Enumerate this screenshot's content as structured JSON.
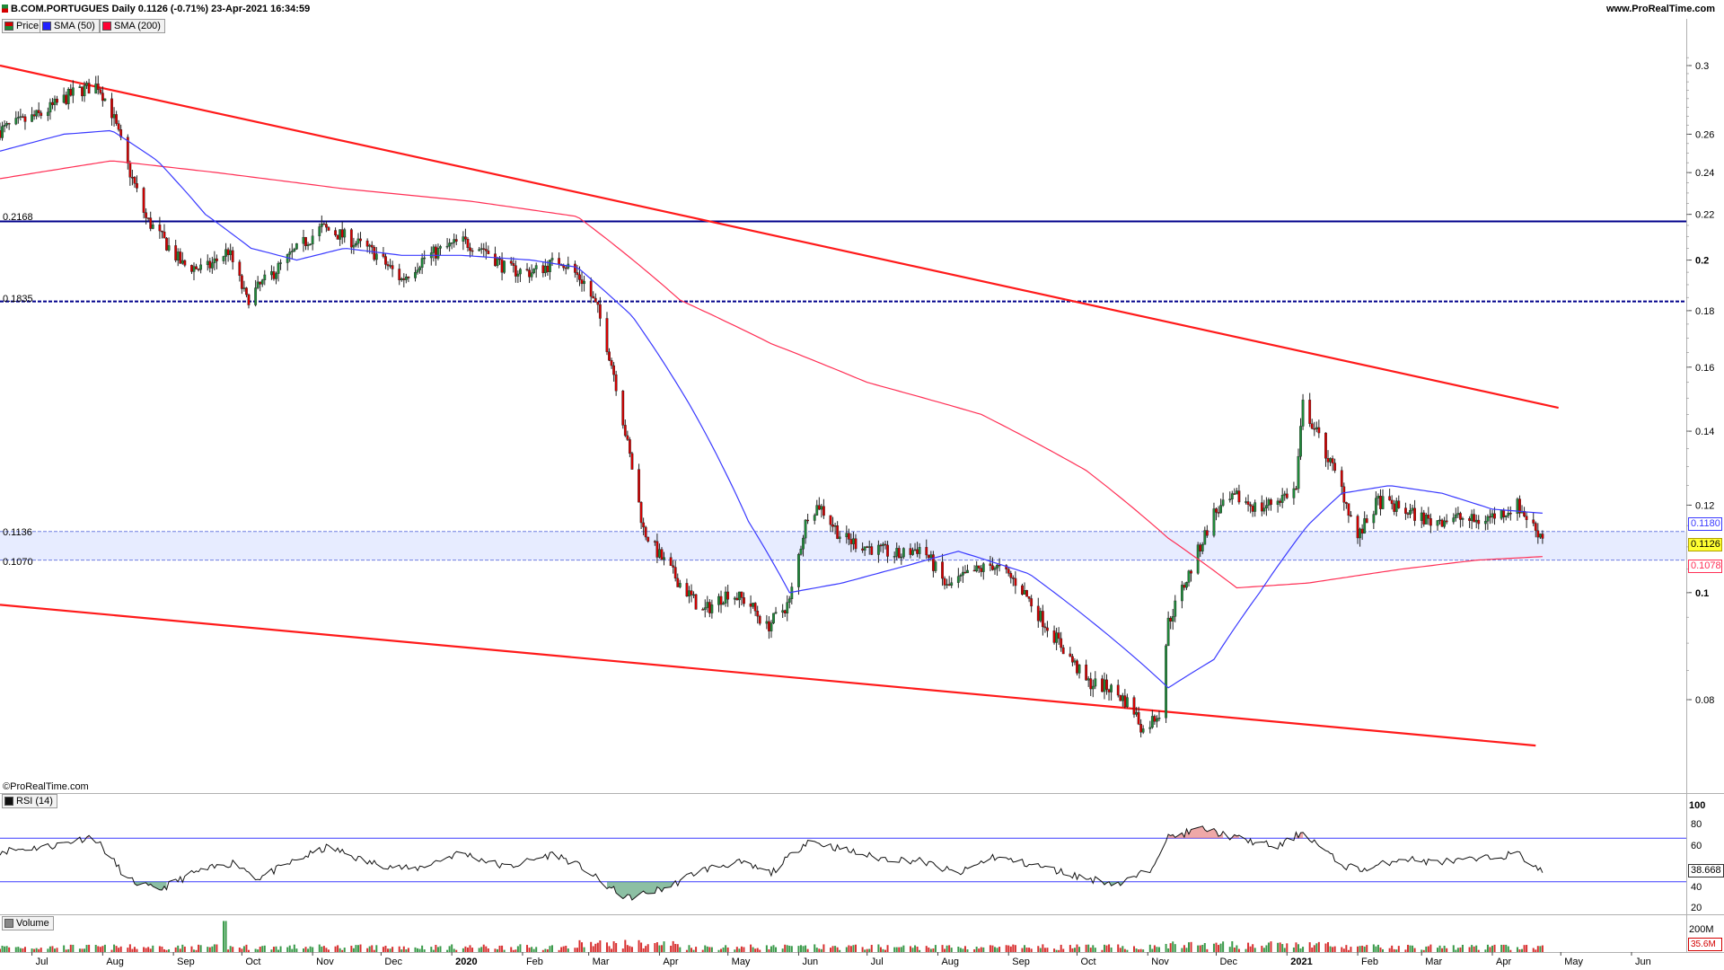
{
  "header": {
    "title": "B.COM.PORTUGUES Daily 0.1126 (-0.71%) 23-Apr-2021 16:34:59",
    "site": "www.ProRealTime.com",
    "watermark": "©ProRealTime.com"
  },
  "legend": [
    {
      "label": "Price",
      "color": "#00a000"
    },
    {
      "label": "SMA (50)",
      "color": "#2020ff"
    },
    {
      "label": "SMA (200)",
      "color": "#ff0033"
    }
  ],
  "price_axis_ticks": [
    "0.3",
    "0.26",
    "0.24",
    "0.22",
    "0.2",
    "0.18",
    "0.16",
    "0.14",
    "0.12",
    "0.1",
    "0.08"
  ],
  "price_tags": {
    "sma50": "0.1180",
    "last": "0.1126",
    "sma200": "0.1078"
  },
  "level_labels": [
    "0.2168",
    "0.1835",
    "0.1136",
    "0.1070"
  ],
  "rsi": {
    "label": "RSI (14)",
    "ticks": [
      "100",
      "80",
      "60",
      "40",
      "20"
    ],
    "value": "38.668"
  },
  "volume": {
    "label": "Volume",
    "ticks": [
      "200M"
    ],
    "value": "35.6M"
  },
  "months": [
    "Jul",
    "Aug",
    "Sep",
    "Oct",
    "Nov",
    "Dec",
    "2020",
    "Feb",
    "Mar",
    "Apr",
    "May",
    "Jun",
    "Jul",
    "Aug",
    "Sep",
    "Oct",
    "Nov",
    "Dec",
    "2021",
    "Feb",
    "Mar",
    "Apr",
    "May",
    "Jun"
  ],
  "colors": {
    "up": "#1f8a3a",
    "down": "#d40000",
    "sma50": "#3a3aff",
    "sma200": "#ff2f55",
    "trend": "#ff1a1a",
    "level": "#00008b"
  },
  "chart_data": {
    "type": "candlestick",
    "title": "B.COM.PORTUGUES Daily",
    "y_scale": "log",
    "ylim": [
      0.07,
      0.32
    ],
    "x_range": [
      "2019-06-17",
      "2021-06-25"
    ],
    "last_price": 0.1126,
    "change_pct": -0.71,
    "horizontal_levels": [
      0.2168,
      0.1835,
      0.1136,
      0.107
    ],
    "shaded_band": [
      0.107,
      0.1136
    ],
    "trend_lines": [
      {
        "from": [
          "2019-06-17",
          0.3
        ],
        "to": [
          "2021-04-30",
          0.147
        ]
      },
      {
        "from": [
          "2019-06-17",
          0.0975
        ],
        "to": [
          "2021-04-20",
          0.0727
        ]
      }
    ],
    "price_path": [
      [
        "2019-06-17",
        0.262
      ],
      [
        "2019-07-05",
        0.271
      ],
      [
        "2019-07-20",
        0.284
      ],
      [
        "2019-07-30",
        0.288
      ],
      [
        "2019-08-05",
        0.272
      ],
      [
        "2019-08-12",
        0.243
      ],
      [
        "2019-08-20",
        0.218
      ],
      [
        "2019-08-28",
        0.208
      ],
      [
        "2019-09-05",
        0.198
      ],
      [
        "2019-09-15",
        0.196
      ],
      [
        "2019-09-25",
        0.204
      ],
      [
        "2019-10-03",
        0.184
      ],
      [
        "2019-10-15",
        0.195
      ],
      [
        "2019-10-28",
        0.207
      ],
      [
        "2019-11-05",
        0.214
      ],
      [
        "2019-11-15",
        0.21
      ],
      [
        "2019-11-28",
        0.203
      ],
      [
        "2019-12-10",
        0.192
      ],
      [
        "2019-12-20",
        0.201
      ],
      [
        "2020-01-05",
        0.208
      ],
      [
        "2020-01-15",
        0.205
      ],
      [
        "2020-01-25",
        0.196
      ],
      [
        "2020-02-05",
        0.195
      ],
      [
        "2020-02-18",
        0.2
      ],
      [
        "2020-02-28",
        0.191
      ],
      [
        "2020-03-05",
        0.18
      ],
      [
        "2020-03-12",
        0.158
      ],
      [
        "2020-03-18",
        0.136
      ],
      [
        "2020-03-25",
        0.114
      ],
      [
        "2020-04-01",
        0.108
      ],
      [
        "2020-04-10",
        0.102
      ],
      [
        "2020-04-20",
        0.096
      ],
      [
        "2020-05-01",
        0.1
      ],
      [
        "2020-05-10",
        0.098
      ],
      [
        "2020-05-18",
        0.093
      ],
      [
        "2020-05-28",
        0.098
      ],
      [
        "2020-06-05",
        0.118
      ],
      [
        "2020-06-10",
        0.12
      ],
      [
        "2020-06-20",
        0.112
      ],
      [
        "2020-07-01",
        0.11
      ],
      [
        "2020-07-15",
        0.108
      ],
      [
        "2020-07-25",
        0.11
      ],
      [
        "2020-08-05",
        0.101
      ],
      [
        "2020-08-15",
        0.104
      ],
      [
        "2020-08-25",
        0.106
      ],
      [
        "2020-09-05",
        0.102
      ],
      [
        "2020-09-15",
        0.095
      ],
      [
        "2020-09-25",
        0.089
      ],
      [
        "2020-10-05",
        0.083
      ],
      [
        "2020-10-15",
        0.082
      ],
      [
        "2020-10-25",
        0.079
      ],
      [
        "2020-10-30",
        0.075
      ],
      [
        "2020-11-06",
        0.078
      ],
      [
        "2020-11-10",
        0.094
      ],
      [
        "2020-11-20",
        0.105
      ],
      [
        "2020-11-30",
        0.118
      ],
      [
        "2020-12-10",
        0.122
      ],
      [
        "2020-12-20",
        0.119
      ],
      [
        "2021-01-05",
        0.124
      ],
      [
        "2021-01-08",
        0.148
      ],
      [
        "2021-01-15",
        0.138
      ],
      [
        "2021-01-25",
        0.124
      ],
      [
        "2021-02-01",
        0.112
      ],
      [
        "2021-02-10",
        0.121
      ],
      [
        "2021-02-20",
        0.119
      ],
      [
        "2021-03-05",
        0.116
      ],
      [
        "2021-03-15",
        0.117
      ],
      [
        "2021-03-25",
        0.116
      ],
      [
        "2021-04-05",
        0.118
      ],
      [
        "2021-04-12",
        0.12
      ],
      [
        "2021-04-20",
        0.114
      ],
      [
        "2021-04-23",
        0.1126
      ]
    ],
    "sma50_path": [
      [
        "2019-06-17",
        0.251
      ],
      [
        "2019-07-15",
        0.26
      ],
      [
        "2019-08-05",
        0.262
      ],
      [
        "2019-08-25",
        0.246
      ],
      [
        "2019-09-15",
        0.22
      ],
      [
        "2019-10-05",
        0.205
      ],
      [
        "2019-10-25",
        0.2
      ],
      [
        "2019-11-15",
        0.205
      ],
      [
        "2019-12-10",
        0.202
      ],
      [
        "2020-01-05",
        0.202
      ],
      [
        "2020-02-05",
        0.2
      ],
      [
        "2020-02-25",
        0.197
      ],
      [
        "2020-03-20",
        0.178
      ],
      [
        "2020-04-15",
        0.147
      ],
      [
        "2020-05-10",
        0.116
      ],
      [
        "2020-05-28",
        0.1
      ],
      [
        "2020-06-20",
        0.102
      ],
      [
        "2020-07-20",
        0.106
      ],
      [
        "2020-08-10",
        0.109
      ],
      [
        "2020-09-10",
        0.104
      ],
      [
        "2020-10-05",
        0.095
      ],
      [
        "2020-10-30",
        0.086
      ],
      [
        "2020-11-10",
        0.082
      ],
      [
        "2020-11-30",
        0.087
      ],
      [
        "2020-12-20",
        0.1
      ],
      [
        "2021-01-10",
        0.115
      ],
      [
        "2021-01-25",
        0.123
      ],
      [
        "2021-02-15",
        0.125
      ],
      [
        "2021-03-10",
        0.123
      ],
      [
        "2021-04-01",
        0.119
      ],
      [
        "2021-04-23",
        0.118
      ]
    ],
    "sma200_path": [
      [
        "2019-06-17",
        0.237
      ],
      [
        "2019-08-05",
        0.246
      ],
      [
        "2019-09-20",
        0.24
      ],
      [
        "2019-11-15",
        0.232
      ],
      [
        "2020-01-10",
        0.226
      ],
      [
        "2020-02-25",
        0.219
      ],
      [
        "2020-04-10",
        0.184
      ],
      [
        "2020-05-20",
        0.168
      ],
      [
        "2020-07-01",
        0.155
      ],
      [
        "2020-08-20",
        0.145
      ],
      [
        "2020-10-05",
        0.129
      ],
      [
        "2020-11-10",
        0.112
      ],
      [
        "2020-12-10",
        0.101
      ],
      [
        "2021-01-10",
        0.102
      ],
      [
        "2021-02-20",
        0.105
      ],
      [
        "2021-03-25",
        0.107
      ],
      [
        "2021-04-23",
        0.1078
      ]
    ],
    "rsi_path": [
      [
        "2019-06-17",
        58
      ],
      [
        "2019-07-10",
        63
      ],
      [
        "2019-07-28",
        72
      ],
      [
        "2019-08-12",
        32
      ],
      [
        "2019-08-25",
        22
      ],
      [
        "2019-09-10",
        38
      ],
      [
        "2019-09-28",
        48
      ],
      [
        "2019-10-08",
        33
      ],
      [
        "2019-10-25",
        50
      ],
      [
        "2019-11-08",
        62
      ],
      [
        "2019-11-25",
        48
      ],
      [
        "2019-12-15",
        41
      ],
      [
        "2020-01-05",
        57
      ],
      [
        "2020-01-25",
        43
      ],
      [
        "2020-02-15",
        56
      ],
      [
        "2020-02-28",
        42
      ],
      [
        "2020-03-08",
        27
      ],
      [
        "2020-03-18",
        15
      ],
      [
        "2020-04-05",
        25
      ],
      [
        "2020-04-18",
        40
      ],
      [
        "2020-05-05",
        48
      ],
      [
        "2020-05-20",
        38
      ],
      [
        "2020-06-05",
        68
      ],
      [
        "2020-06-20",
        60
      ],
      [
        "2020-07-05",
        52
      ],
      [
        "2020-07-25",
        49
      ],
      [
        "2020-08-10",
        37
      ],
      [
        "2020-08-25",
        53
      ],
      [
        "2020-09-15",
        44
      ],
      [
        "2020-10-05",
        33
      ],
      [
        "2020-10-20",
        28
      ],
      [
        "2020-11-02",
        41
      ],
      [
        "2020-11-09",
        70
      ],
      [
        "2020-11-25",
        79
      ],
      [
        "2020-12-10",
        70
      ],
      [
        "2020-12-28",
        62
      ],
      [
        "2021-01-08",
        76
      ],
      [
        "2021-01-25",
        45
      ],
      [
        "2021-02-05",
        41
      ],
      [
        "2021-02-20",
        52
      ],
      [
        "2021-03-05",
        48
      ],
      [
        "2021-03-25",
        50
      ],
      [
        "2021-04-12",
        56
      ],
      [
        "2021-04-23",
        38.668
      ]
    ],
    "rsi_bounds": [
      70,
      30
    ],
    "rsi_ylim": [
      0,
      100
    ],
    "volume_ylim": [
      0,
      250000000
    ],
    "last_volume": 35600000
  }
}
